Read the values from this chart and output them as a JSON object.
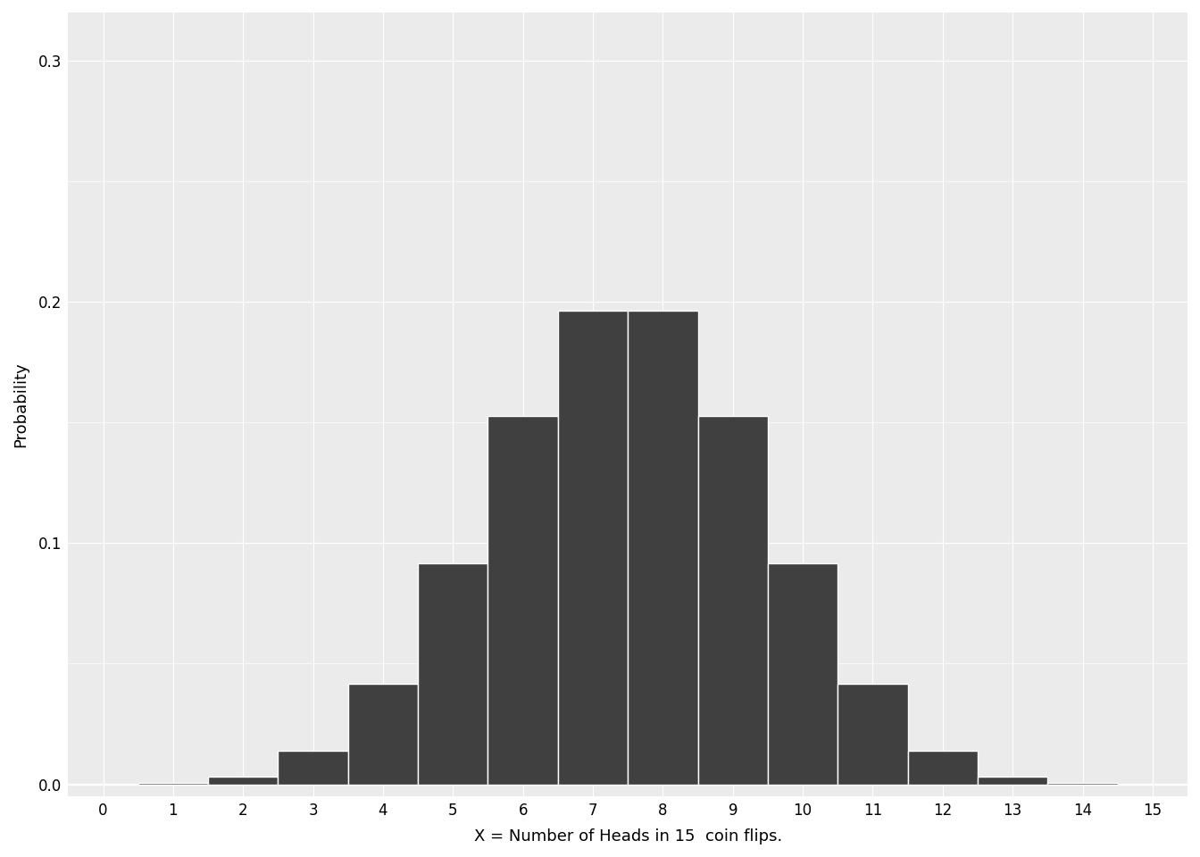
{
  "n": 15,
  "p": 0.5,
  "x_values": [
    0,
    1,
    2,
    3,
    4,
    5,
    6,
    7,
    8,
    9,
    10,
    11,
    12,
    13,
    14,
    15
  ],
  "probabilities": [
    3.05176e-05,
    0.0004577637,
    0.0032043457,
    0.0138549805,
    0.0416564941,
    0.0916442871,
    0.1527404785,
    0.1963806152,
    0.1963806152,
    0.1527404785,
    0.0916442871,
    0.0416564941,
    0.0138549805,
    0.0032043457,
    0.0004577637,
    3.05176e-05
  ],
  "bar_color": "#404040",
  "bar_edge_color": "#ffffff",
  "bar_edge_width": 1.0,
  "background_color": "#ebebeb",
  "plot_bg_color": "#ebebeb",
  "outer_bg_color": "#ffffff",
  "grid_color": "#ffffff",
  "title": "",
  "xlabel": "X = Number of Heads in 15  coin flips.",
  "ylabel": "Probability",
  "xlim": [
    -0.5,
    15.5
  ],
  "ylim": [
    -0.005,
    0.32
  ],
  "yticks": [
    0.0,
    0.1,
    0.2,
    0.3
  ],
  "xticks": [
    0,
    1,
    2,
    3,
    4,
    5,
    6,
    7,
    8,
    9,
    10,
    11,
    12,
    13,
    14,
    15
  ],
  "xlabel_fontsize": 13,
  "ylabel_fontsize": 13,
  "tick_fontsize": 12
}
